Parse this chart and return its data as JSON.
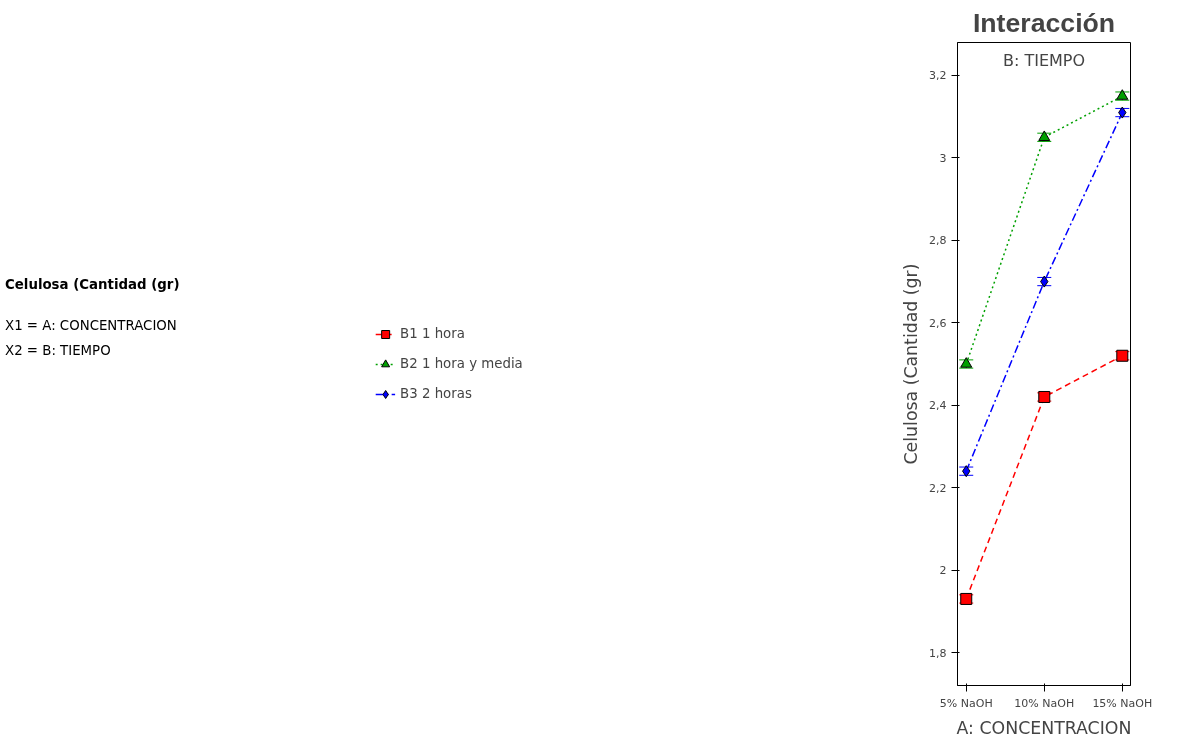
{
  "chart_data": {
    "type": "line",
    "title": "Interacción",
    "xlabel": "A: CONCENTRACION",
    "ylabel": "Celulosa (Cantidad (gr)",
    "categories": [
      "5% NaOH",
      "10% NaOH",
      "15% NaOH"
    ],
    "series": [
      {
        "name": "B1 1 hora",
        "color": "#ff0000",
        "values": [
          1.93,
          2.42,
          2.52
        ],
        "errors": [
          0.01,
          0.01,
          0.01
        ],
        "marker": "square",
        "line_style": "dashed"
      },
      {
        "name": "B2 1 hora y media",
        "color": "#00a000",
        "values": [
          2.5,
          3.05,
          3.15
        ],
        "errors": [
          0.01,
          0.01,
          0.01
        ],
        "marker": "triangle",
        "line_style": "dotted"
      },
      {
        "name": "B3 2 horas",
        "color": "#0000ff",
        "values": [
          2.24,
          2.7,
          3.11
        ],
        "errors": [
          0.01,
          0.01,
          0.01
        ],
        "marker": "diamond",
        "line_style": "dashdot"
      }
    ],
    "ylim": [
      1.72,
      3.28
    ],
    "yticks": [
      {
        "value": 1.8,
        "label": "1,8"
      },
      2,
      {
        "value": 2.2,
        "label": "2,2"
      },
      {
        "value": 2.4,
        "label": "2,4"
      },
      {
        "value": 2.6,
        "label": "2,6"
      },
      {
        "value": 2.8,
        "label": "2,8"
      },
      3,
      {
        "value": 3.2,
        "label": "3,2"
      }
    ],
    "annotations": [
      "Celulosa (Cantidad (gr)",
      "X1 = A: CONCENTRACION",
      "X2 = B: TIEMPO",
      "B: TIEMPO"
    ],
    "legend": "left",
    "grid": false
  }
}
